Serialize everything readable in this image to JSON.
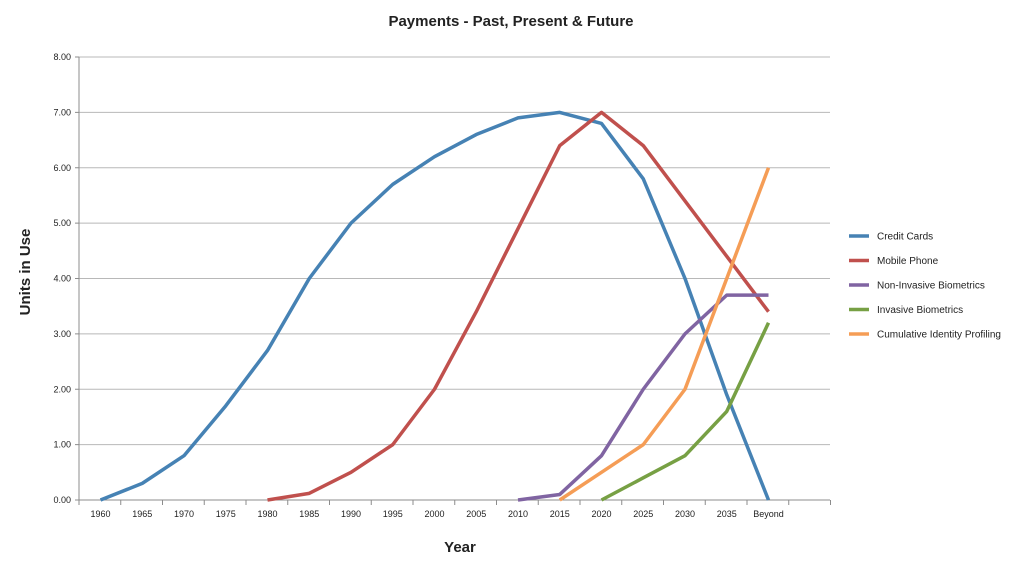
{
  "chart_data": {
    "type": "line",
    "title": "Payments - Past, Present & Future",
    "xlabel": "Year",
    "ylabel": "Units in Use",
    "categories": [
      "1960",
      "1965",
      "1970",
      "1975",
      "1980",
      "1985",
      "1990",
      "1995",
      "2000",
      "2005",
      "2010",
      "2015",
      "2020",
      "2025",
      "2030",
      "2035",
      "Beyond"
    ],
    "ylim": [
      0,
      8
    ],
    "yticks": [
      "0.00",
      "1.00",
      "2.00",
      "3.00",
      "4.00",
      "5.00",
      "6.00",
      "7.00",
      "8.00"
    ],
    "grid": true,
    "legend_position": "right",
    "series": [
      {
        "name": "Credit Cards",
        "color": "#4682b4",
        "values": [
          0,
          0.3,
          0.8,
          1.7,
          2.7,
          4.0,
          5.0,
          5.7,
          6.2,
          6.6,
          6.9,
          7.0,
          6.8,
          5.8,
          4.0,
          1.9,
          0
        ]
      },
      {
        "name": "Mobile Phone",
        "color": "#c0504d",
        "values": [
          null,
          null,
          null,
          null,
          0,
          0.12,
          0.5,
          1.0,
          2.0,
          3.4,
          4.9,
          6.4,
          7.0,
          6.4,
          5.4,
          4.4,
          3.4
        ]
      },
      {
        "name": "Non-Invasive Biometrics",
        "color": "#8064a2",
        "values": [
          null,
          null,
          null,
          null,
          null,
          null,
          null,
          null,
          null,
          null,
          0,
          0.1,
          0.8,
          2.0,
          3.0,
          3.7,
          3.7
        ]
      },
      {
        "name": "Invasive Biometrics",
        "color": "#77a044",
        "values": [
          null,
          null,
          null,
          null,
          null,
          null,
          null,
          null,
          null,
          null,
          null,
          null,
          0,
          0.4,
          0.8,
          1.6,
          3.2
        ]
      },
      {
        "name": "Cumulative Identity Profiling",
        "color": "#f59d56",
        "values": [
          null,
          null,
          null,
          null,
          null,
          null,
          null,
          null,
          null,
          null,
          null,
          0,
          0.5,
          1.0,
          2.0,
          4.0,
          6.0
        ]
      }
    ]
  }
}
